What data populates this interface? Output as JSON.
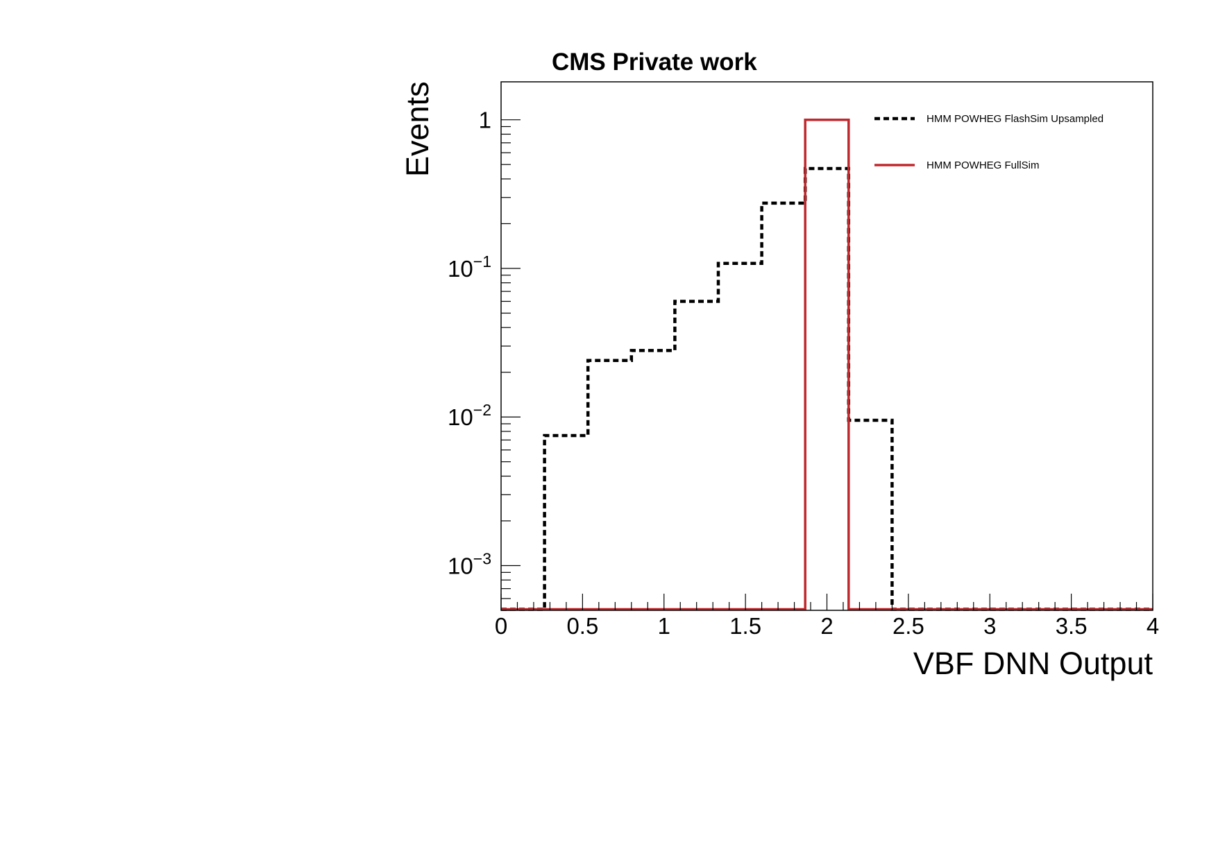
{
  "chart_data": {
    "type": "histogram",
    "title": "CMS Private work",
    "xlabel": "VBF DNN Output",
    "ylabel": "Events",
    "xlim": [
      0,
      4
    ],
    "ylim": [
      0.0005,
      1.8
    ],
    "y_scale": "log",
    "grid": false,
    "legend_position": "top-right",
    "x_ticks": [
      "0",
      "0.5",
      "1",
      "1.5",
      "2",
      "2.5",
      "3",
      "3.5",
      "4"
    ],
    "y_ticks": [
      {
        "value": 1,
        "base": "1",
        "exp": ""
      },
      {
        "value": 0.1,
        "base": "10",
        "exp": "−1"
      },
      {
        "value": 0.01,
        "base": "10",
        "exp": "−2"
      },
      {
        "value": 0.001,
        "base": "10",
        "exp": "−3"
      }
    ],
    "bin_edges": [
      0,
      0.2667,
      0.5333,
      0.8,
      1.0667,
      1.3333,
      1.6,
      1.8667,
      2.1333,
      2.4,
      2.6667,
      2.9333,
      3.2,
      3.4667,
      3.7333,
      4.0
    ],
    "series": [
      {
        "name": "HMM POWHEG FlashSim Upsampled",
        "color": "#000000",
        "style": "dashed",
        "values": [
          0,
          0.0075,
          0.024,
          0.028,
          0.06,
          0.108,
          0.275,
          0.47,
          0.0095,
          0,
          0,
          0,
          0,
          0,
          0
        ]
      },
      {
        "name": "HMM POWHEG FullSim",
        "color": "#c0282d",
        "style": "solid",
        "values": [
          0,
          0,
          0,
          0,
          0,
          0,
          0,
          1.0,
          0,
          0,
          0,
          0,
          0,
          0,
          0
        ]
      }
    ]
  }
}
